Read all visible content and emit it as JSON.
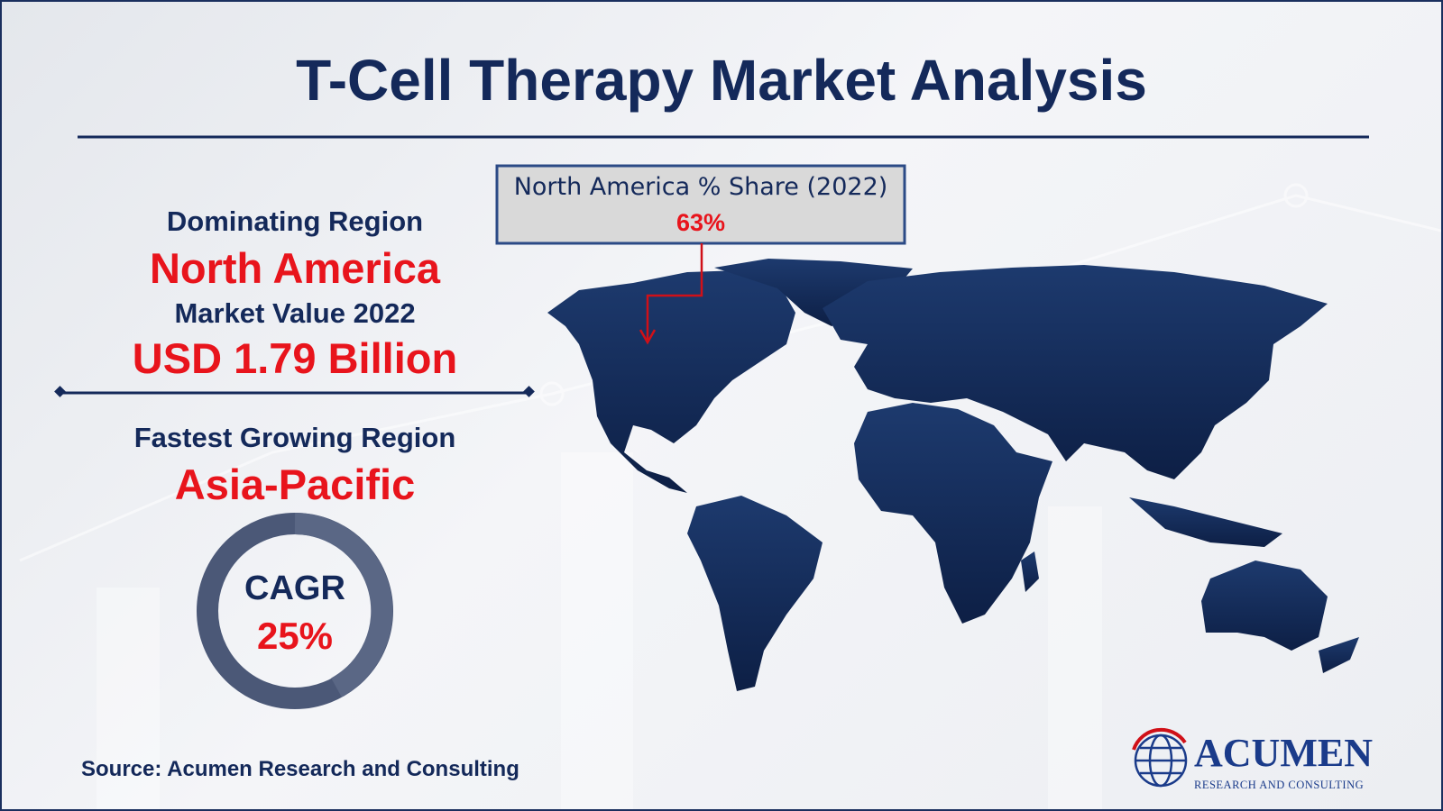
{
  "header": {
    "title": "T-Cell Therapy Market Analysis"
  },
  "highlights": {
    "dominating_label": "Dominating Region",
    "dominating_value": "North America",
    "market_label": "Market Value 2022",
    "market_value": "USD 1.79 Billion",
    "fastest_label": "Fastest Growing Region",
    "fastest_value": "Asia-Pacific"
  },
  "cagr": {
    "label": "CAGR",
    "value": "25%"
  },
  "callout": {
    "label": "North America % Share (2022)",
    "value": "63%"
  },
  "footer": {
    "source": "Source: Acumen Research and Consulting",
    "logo_name": "ACUMEN",
    "logo_tagline": "RESEARCH AND CONSULTING"
  }
}
